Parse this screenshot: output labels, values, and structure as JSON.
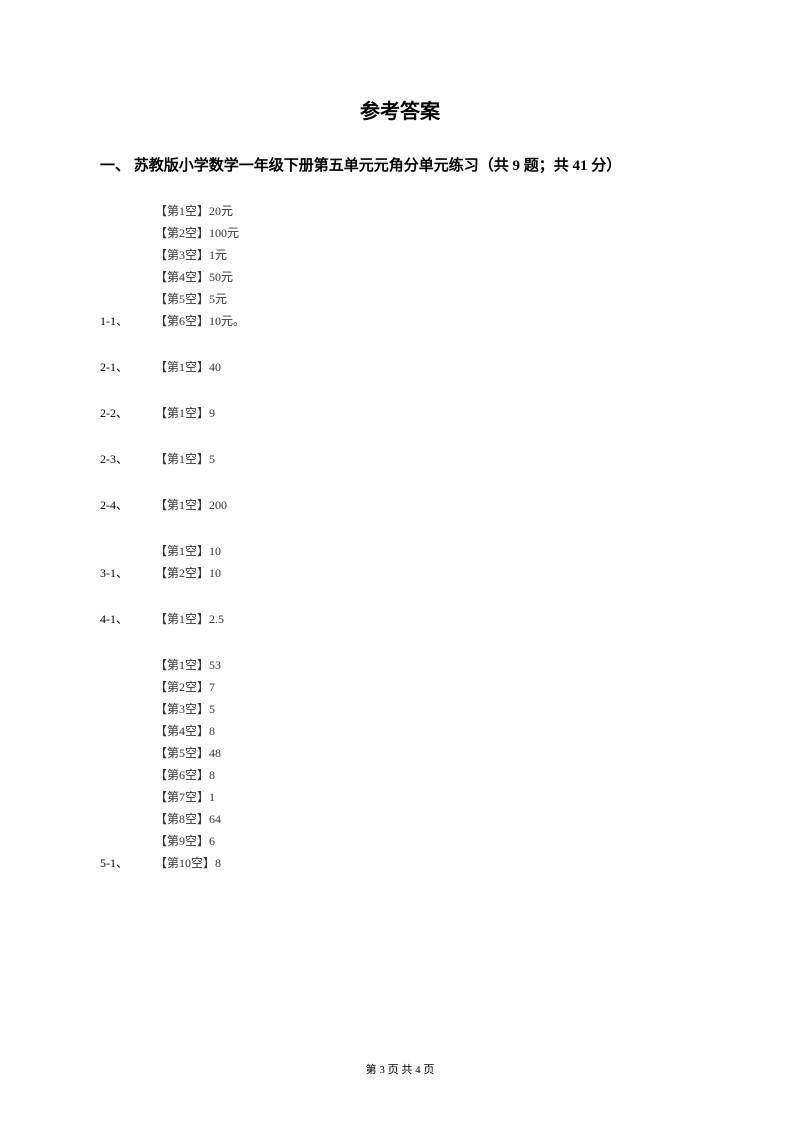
{
  "title": "参考答案",
  "section": "一、 苏教版小学数学一年级下册第五单元元角分单元练习（共 9 题；共 41 分）",
  "groups": [
    {
      "number": "1-1、",
      "answers": [
        "【第1空】20元",
        "【第2空】100元",
        "【第3空】1元",
        "【第4空】50元",
        "【第5空】5元",
        "【第6空】10元。"
      ]
    },
    {
      "number": "2-1、",
      "answers": [
        "【第1空】40"
      ]
    },
    {
      "number": "2-2、",
      "answers": [
        "【第1空】9"
      ]
    },
    {
      "number": "2-3、",
      "answers": [
        "【第1空】5"
      ]
    },
    {
      "number": "2-4、",
      "answers": [
        "【第1空】200"
      ]
    },
    {
      "number": "3-1、",
      "answers": [
        "【第1空】10",
        "【第2空】10"
      ]
    },
    {
      "number": "4-1、",
      "answers": [
        "【第1空】2.5"
      ]
    },
    {
      "number": "5-1、",
      "answers": [
        "【第1空】53",
        "【第2空】7",
        "【第3空】5",
        "【第4空】8",
        "【第5空】48",
        "【第6空】8",
        "【第7空】1",
        "【第8空】64",
        "【第9空】6",
        "【第10空】8"
      ]
    }
  ],
  "footer": "第 3 页 共 4 页"
}
